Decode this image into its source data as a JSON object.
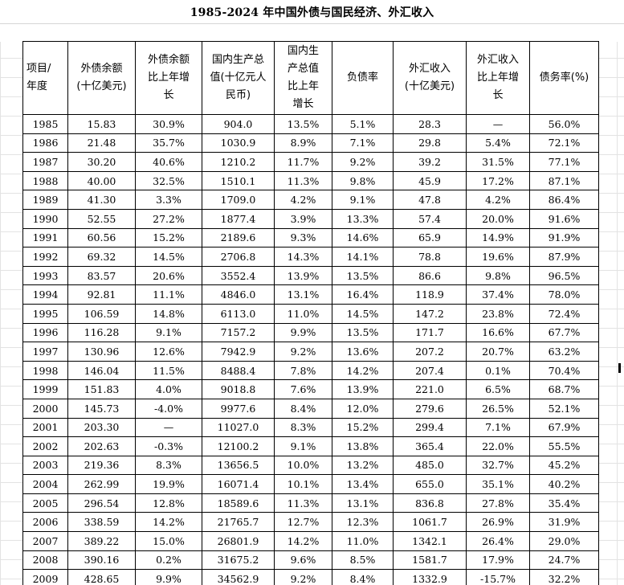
{
  "title": "1985-2024 年中国外债与国民经济、外汇收入",
  "headers": [
    [
      "项目/",
      "年度"
    ],
    [
      "外债余额",
      "(十亿美元)"
    ],
    [
      "外债余额",
      "比上年增",
      "长"
    ],
    [
      "国内生产总",
      "值(十亿元人",
      "民币)"
    ],
    [
      "国内生",
      "产总值",
      "比上年",
      "增长"
    ],
    [
      "负债率"
    ],
    [
      "外汇收入",
      "(十亿美元)"
    ],
    [
      "外汇收入",
      "比上年增",
      "长"
    ],
    [
      "债务率(%)"
    ]
  ],
  "rows": [
    [
      "1985",
      "15.83",
      "30.9%",
      "904.0",
      "13.5%",
      "5.1%",
      "28.3",
      "—",
      "56.0%"
    ],
    [
      "1986",
      "21.48",
      "35.7%",
      "1030.9",
      "8.9%",
      "7.1%",
      "29.8",
      "5.4%",
      "72.1%"
    ],
    [
      "1987",
      "30.20",
      "40.6%",
      "1210.2",
      "11.7%",
      "9.2%",
      "39.2",
      "31.5%",
      "77.1%"
    ],
    [
      "1988",
      "40.00",
      "32.5%",
      "1510.1",
      "11.3%",
      "9.8%",
      "45.9",
      "17.2%",
      "87.1%"
    ],
    [
      "1989",
      "41.30",
      "3.3%",
      "1709.0",
      "4.2%",
      "9.1%",
      "47.8",
      "4.2%",
      "86.4%"
    ],
    [
      "1990",
      "52.55",
      "27.2%",
      "1877.4",
      "3.9%",
      "13.3%",
      "57.4",
      "20.0%",
      "91.6%"
    ],
    [
      "1991",
      "60.56",
      "15.2%",
      "2189.6",
      "9.3%",
      "14.6%",
      "65.9",
      "14.9%",
      "91.9%"
    ],
    [
      "1992",
      "69.32",
      "14.5%",
      "2706.8",
      "14.3%",
      "14.1%",
      "78.8",
      "19.6%",
      "87.9%"
    ],
    [
      "1993",
      "83.57",
      "20.6%",
      "3552.4",
      "13.9%",
      "13.5%",
      "86.6",
      "9.8%",
      "96.5%"
    ],
    [
      "1994",
      "92.81",
      "11.1%",
      "4846.0",
      "13.1%",
      "16.4%",
      "118.9",
      "37.4%",
      "78.0%"
    ],
    [
      "1995",
      "106.59",
      "14.8%",
      "6113.0",
      "11.0%",
      "14.5%",
      "147.2",
      "23.8%",
      "72.4%"
    ],
    [
      "1996",
      "116.28",
      "9.1%",
      "7157.2",
      "9.9%",
      "13.5%",
      "171.7",
      "16.6%",
      "67.7%"
    ],
    [
      "1997",
      "130.96",
      "12.6%",
      "7942.9",
      "9.2%",
      "13.6%",
      "207.2",
      "20.7%",
      "63.2%"
    ],
    [
      "1998",
      "146.04",
      "11.5%",
      "8488.4",
      "7.8%",
      "14.2%",
      "207.4",
      "0.1%",
      "70.4%"
    ],
    [
      "1999",
      "151.83",
      "4.0%",
      "9018.8",
      "7.6%",
      "13.9%",
      "221.0",
      "6.5%",
      "68.7%"
    ],
    [
      "2000",
      "145.73",
      "-4.0%",
      "9977.6",
      "8.4%",
      "12.0%",
      "279.6",
      "26.5%",
      "52.1%"
    ],
    [
      "2001",
      "203.30",
      "—",
      "11027.0",
      "8.3%",
      "15.2%",
      "299.4",
      "7.1%",
      "67.9%"
    ],
    [
      "2002",
      "202.63",
      "-0.3%",
      "12100.2",
      "9.1%",
      "13.8%",
      "365.4",
      "22.0%",
      "55.5%"
    ],
    [
      "2003",
      "219.36",
      "8.3%",
      "13656.5",
      "10.0%",
      "13.2%",
      "485.0",
      "32.7%",
      "45.2%"
    ],
    [
      "2004",
      "262.99",
      "19.9%",
      "16071.4",
      "10.1%",
      "13.4%",
      "655.0",
      "35.1%",
      "40.2%"
    ],
    [
      "2005",
      "296.54",
      "12.8%",
      "18589.6",
      "11.3%",
      "13.1%",
      "836.8",
      "27.8%",
      "35.4%"
    ],
    [
      "2006",
      "338.59",
      "14.2%",
      "21765.7",
      "12.7%",
      "12.3%",
      "1061.7",
      "26.9%",
      "31.9%"
    ],
    [
      "2007",
      "389.22",
      "15.0%",
      "26801.9",
      "14.2%",
      "11.0%",
      "1342.1",
      "26.4%",
      "29.0%"
    ],
    [
      "2008",
      "390.16",
      "0.2%",
      "31675.2",
      "9.6%",
      "8.5%",
      "1581.7",
      "17.9%",
      "24.7%"
    ],
    [
      "2009",
      "428.65",
      "9.9%",
      "34562.9",
      "9.2%",
      "8.4%",
      "1332.9",
      "-15.7%",
      "32.2%"
    ]
  ]
}
